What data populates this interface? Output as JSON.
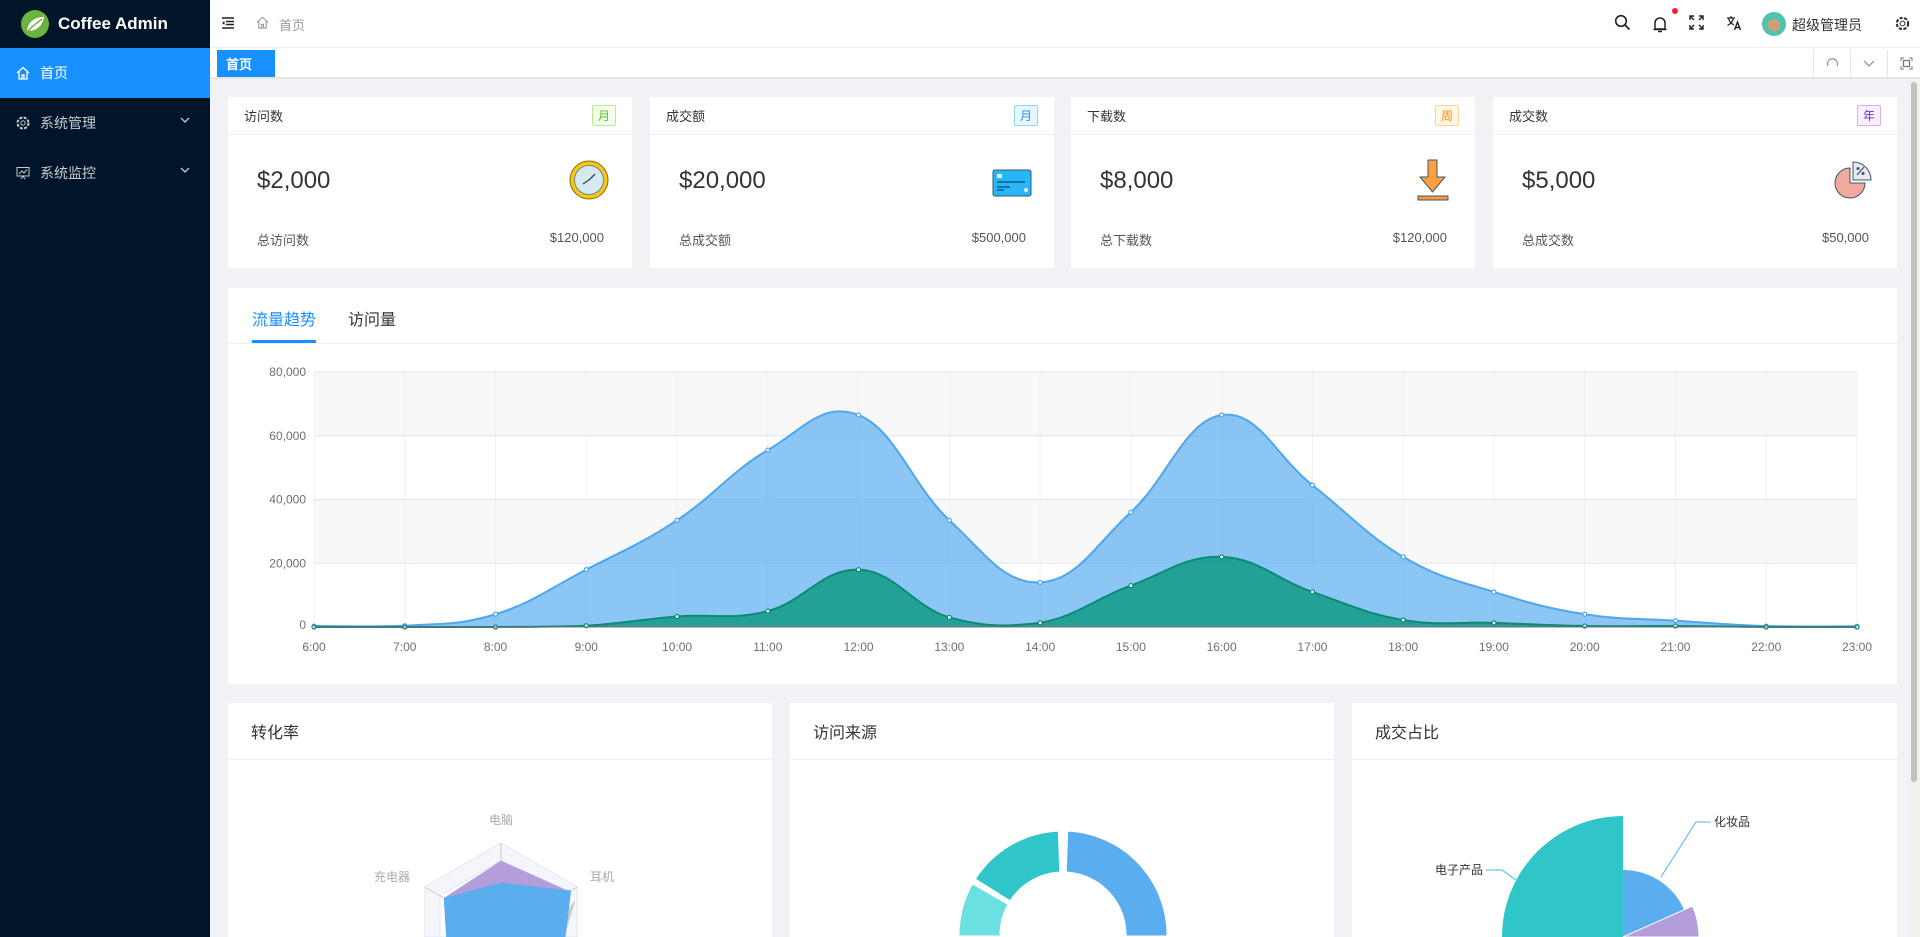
{
  "app": {
    "title": "Coffee Admin"
  },
  "sidebar": {
    "items": [
      {
        "label": "首页",
        "icon": "home-icon",
        "active": true
      },
      {
        "label": "系统管理",
        "icon": "gear-icon"
      },
      {
        "label": "系统监控",
        "icon": "monitor-icon"
      }
    ]
  },
  "header": {
    "breadcrumb": "首页",
    "user": "超级管理员",
    "notification_dot": "#f5222d"
  },
  "tags": {
    "active": "首页"
  },
  "cards": [
    {
      "title": "访问数",
      "badge": "月",
      "badge_color": "#52c41a",
      "value": "$2,000",
      "icon": "clock-icon",
      "foot_label": "总访问数",
      "foot_value": "$120,000"
    },
    {
      "title": "成交额",
      "badge": "月",
      "badge_color": "#1890ff",
      "value": "$20,000",
      "icon": "credit-card-icon",
      "foot_label": "总成交额",
      "foot_value": "$500,000"
    },
    {
      "title": "下载数",
      "badge": "周",
      "badge_color": "#fa8c16",
      "value": "$8,000",
      "icon": "download-icon",
      "foot_label": "总下载数",
      "foot_value": "$120,000"
    },
    {
      "title": "成交数",
      "badge": "年",
      "badge_color": "#722ed1",
      "value": "$5,000",
      "icon": "pie-percent-icon",
      "foot_label": "总成交数",
      "foot_value": "$50,000"
    }
  ],
  "trend": {
    "tabs": [
      "流量趋势",
      "访问量"
    ],
    "active_tab": 0
  },
  "bottom": {
    "titles": [
      "转化率",
      "访问来源",
      "成交占比"
    ]
  },
  "chart_data": [
    {
      "type": "area",
      "smooth": true,
      "x": [
        "6:00",
        "7:00",
        "8:00",
        "9:00",
        "10:00",
        "11:00",
        "12:00",
        "13:00",
        "14:00",
        "15:00",
        "16:00",
        "17:00",
        "18:00",
        "19:00",
        "20:00",
        "21:00",
        "22:00",
        "23:00"
      ],
      "ylim": [
        0,
        80000
      ],
      "yticks": [
        "0",
        "20,000",
        "40,000",
        "60,000",
        "80,000"
      ],
      "grid": true,
      "series": [
        {
          "color": "#5aaef0",
          "values": [
            300,
            400,
            4000,
            18000,
            33500,
            55500,
            66500,
            33500,
            14000,
            36000,
            66500,
            44500,
            22000,
            11000,
            4000,
            2000,
            300,
            200
          ]
        },
        {
          "color": "#109a86",
          "values": [
            0,
            0,
            0,
            400,
            3300,
            5000,
            18000,
            3000,
            1300,
            13000,
            22000,
            11000,
            2200,
            1300,
            300,
            300,
            0,
            0
          ]
        }
      ]
    },
    {
      "type": "radar",
      "indicators": [
        "电脑",
        "耳机",
        "充电器"
      ],
      "series": [
        {
          "color": "#b39ddb",
          "values": [
            0.8,
            0.9,
            0.75
          ]
        },
        {
          "color": "#5aaef0",
          "values": [
            0.55,
            0.92,
            0.75
          ]
        }
      ]
    },
    {
      "type": "pie",
      "variant": "donut",
      "colors": [
        "#5aaef0",
        "#30c6c9",
        "#6ae0e3"
      ]
    },
    {
      "type": "pie",
      "variant": "rose",
      "labels": [
        "化妆品",
        "电子产品"
      ],
      "colors": [
        "#5aaef0",
        "#30c6c9",
        "#b39ddb"
      ]
    }
  ]
}
